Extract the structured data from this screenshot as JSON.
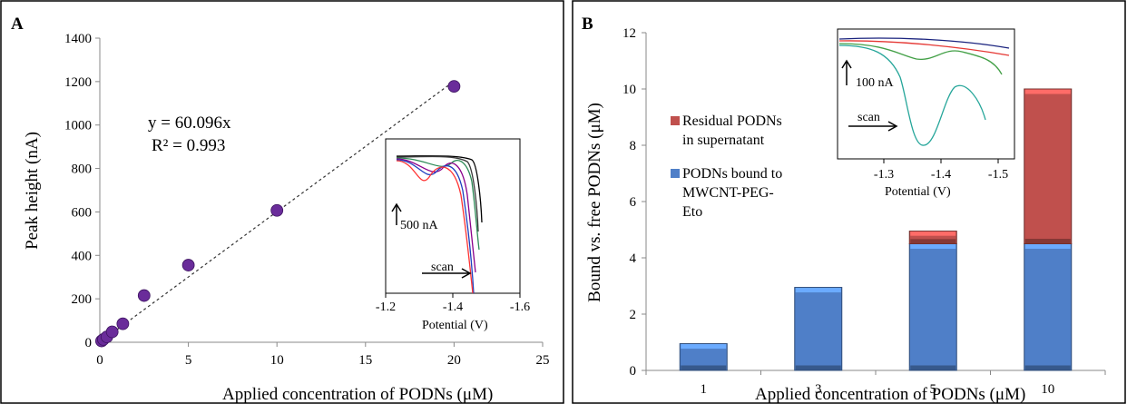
{
  "chart_data": [
    {
      "panel_label": "A",
      "type": "scatter",
      "xlabel": "Applied concentration of PODNs (μM)",
      "ylabel": "Peak height (nA)",
      "xlim": [
        0,
        25
      ],
      "ylim": [
        0,
        1400
      ],
      "x_ticks": [
        0,
        5,
        10,
        15,
        20,
        25
      ],
      "y_ticks": [
        0,
        200,
        400,
        600,
        800,
        1000,
        1200,
        1400
      ],
      "x": [
        0.1,
        0.2,
        0.4,
        0.7,
        1.3,
        2.5,
        5,
        10,
        20
      ],
      "y": [
        6,
        13,
        25,
        48,
        85,
        215,
        355,
        607,
        1178
      ],
      "point_color": "#6a2c9a",
      "trendline": {
        "slope": 60.096,
        "style": "dashed"
      },
      "equation": "y = 60.096x",
      "r2": "R² = 0.993",
      "inset": {
        "xlabel": "Potential (V)",
        "x_ticks": [
          "-1.2",
          "-1.4",
          "-1.6"
        ],
        "scale_label": "500 nA",
        "scan_label": "scan",
        "curve_colors": [
          "#000000",
          "#3a3a3a",
          "#2e8b57",
          "#8b008b",
          "#1f3fbf",
          "#ff3333"
        ]
      }
    },
    {
      "panel_label": "B",
      "type": "bar",
      "stacked": true,
      "xlabel": "Applied concentration of PODNs (μM)",
      "ylabel": "Bound vs. free PODNs (μM)",
      "categories": [
        "1",
        "3",
        "5",
        "10"
      ],
      "ylim": [
        0,
        12
      ],
      "y_ticks": [
        0,
        2,
        4,
        6,
        8,
        10,
        12
      ],
      "series": [
        {
          "name": "PODNs bound to MWCNT-PEG-Eto",
          "legend_lines": [
            "PODNs bound to",
            "MWCNT-PEG-",
            "Eto"
          ],
          "color": "#4f7fc8",
          "values": [
            0.95,
            2.95,
            4.5,
            4.5
          ]
        },
        {
          "name": "Residual PODNs in supernatant",
          "legend_lines": [
            "Residual PODNs",
            "in supernatant"
          ],
          "color": "#c0504d",
          "values": [
            0,
            0,
            0.45,
            5.5
          ]
        }
      ],
      "inset": {
        "xlabel": "Potential (V)",
        "x_ticks": [
          "-1.3",
          "-1.4",
          "-1.5"
        ],
        "scale_label": "100 nA",
        "scan_label": "scan",
        "curve_colors": [
          "#1a237e",
          "#e53935",
          "#43a047",
          "#26a69a"
        ]
      }
    }
  ]
}
